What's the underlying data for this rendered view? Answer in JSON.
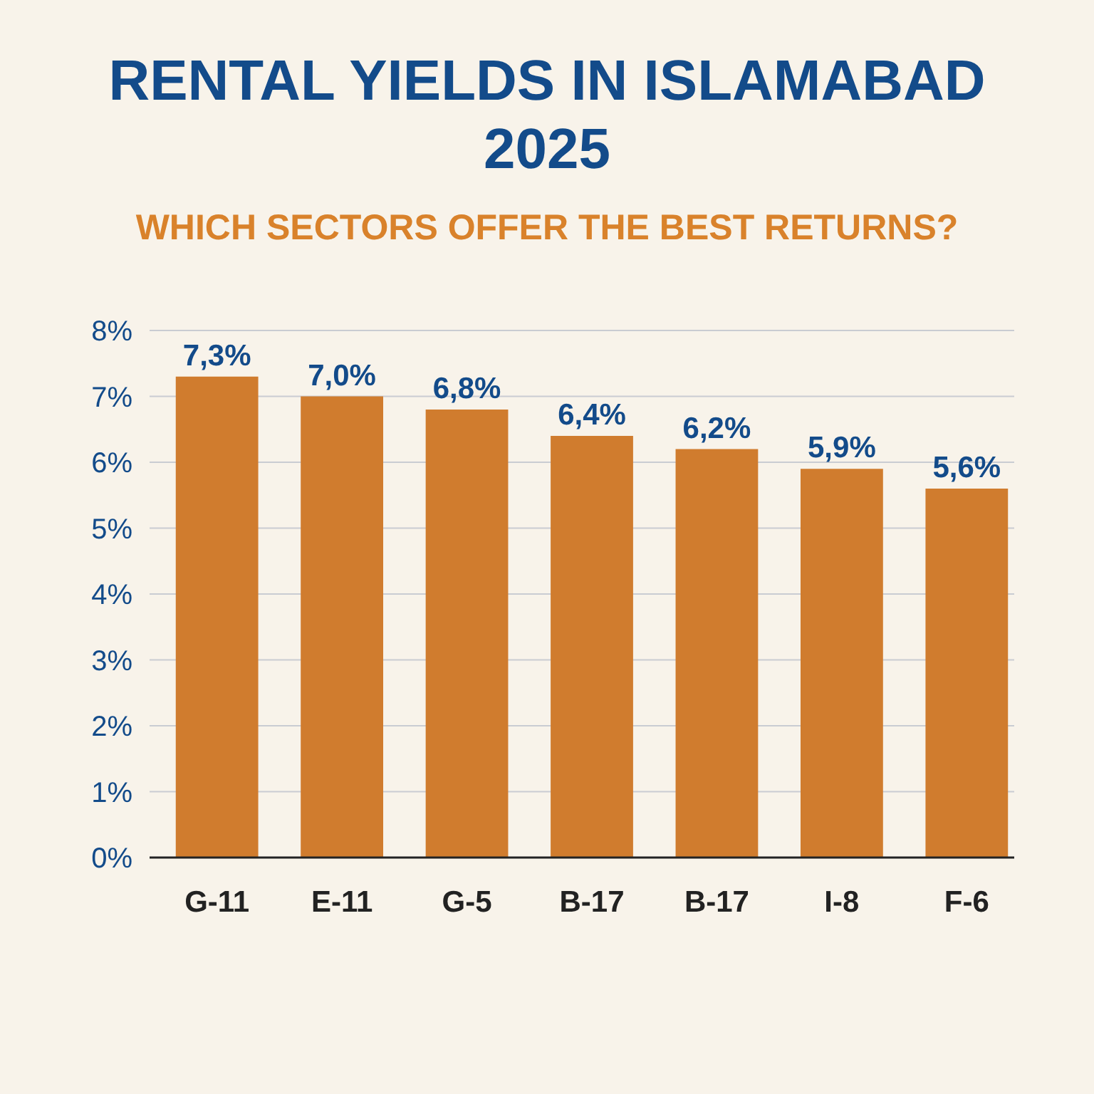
{
  "chart_data": {
    "type": "bar",
    "title": "RENTAL YIELDS IN ISLAMABAD 2025",
    "subtitle": "WHICH SECTORS OFFER THE BEST RETURNS?",
    "categories": [
      "G-11",
      "E-11",
      "G-5",
      "B-17",
      "B-17",
      "I-8",
      "F-6"
    ],
    "values": [
      7.3,
      7.0,
      6.8,
      6.4,
      6.2,
      5.9,
      5.6
    ],
    "value_labels": [
      "7,3%",
      "7,0%",
      "6,8%",
      "6,4%",
      "6,2%",
      "5,9%",
      "5,6%"
    ],
    "color": "#d07c2e",
    "ylim": [
      0,
      8
    ],
    "yticks": [
      {
        "value": 0,
        "label": "0%"
      },
      {
        "value": 1,
        "label": "1%"
      },
      {
        "value": 2,
        "label": "2%"
      },
      {
        "value": 3,
        "label": "3%"
      },
      {
        "value": 4,
        "label": "4%"
      },
      {
        "value": 5,
        "label": "5%"
      },
      {
        "value": 6,
        "label": "6%"
      },
      {
        "value": 7,
        "label": "7%"
      },
      {
        "value": 8,
        "label": "8%"
      }
    ],
    "grid": "y"
  }
}
